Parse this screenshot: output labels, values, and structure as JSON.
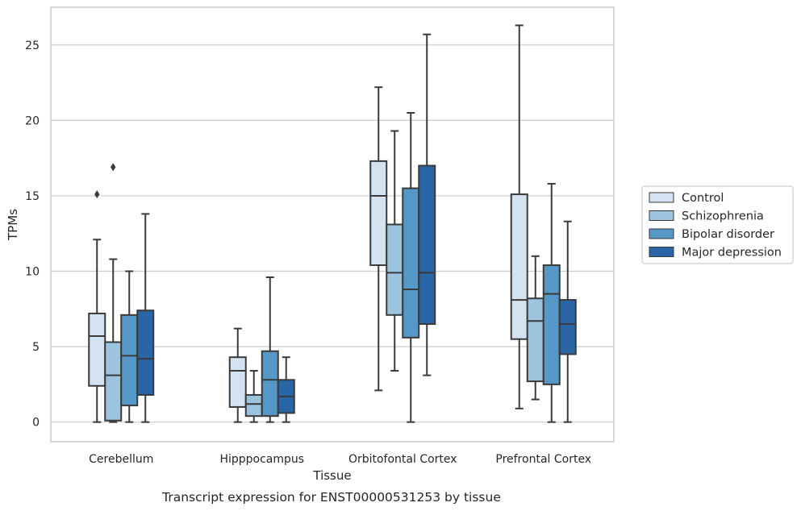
{
  "chart_data": {
    "type": "box",
    "caption": "Transcript expression for ENST00000531253 by tissue",
    "xlabel": "Tissue",
    "ylabel": "TPMs",
    "ylim": [
      -1.3,
      27.5
    ],
    "yticks": [
      0,
      5,
      10,
      15,
      20,
      25
    ],
    "grid": "horizontal",
    "legend_position": "right",
    "categories": [
      "Cerebellum",
      "Hipppocampus",
      "Orbitofontal Cortex",
      "Prefrontal Cortex"
    ],
    "series": [
      {
        "name": "Control",
        "color": "#d3e3f2",
        "boxes": [
          {
            "whisker_low": 0,
            "q1": 2.4,
            "median": 5.7,
            "q3": 7.2,
            "whisker_high": 12.1,
            "outliers": [
              15.1
            ]
          },
          {
            "whisker_low": 0,
            "q1": 1.0,
            "median": 3.4,
            "q3": 4.3,
            "whisker_high": 6.2,
            "outliers": []
          },
          {
            "whisker_low": 2.1,
            "q1": 10.4,
            "median": 15.0,
            "q3": 17.3,
            "whisker_high": 22.2,
            "outliers": []
          },
          {
            "whisker_low": 0.9,
            "q1": 5.5,
            "median": 8.1,
            "q3": 15.1,
            "whisker_high": 26.3,
            "outliers": []
          }
        ]
      },
      {
        "name": "Schizophrenia",
        "color": "#9cc4df",
        "boxes": [
          {
            "whisker_low": 0,
            "q1": 0.1,
            "median": 3.1,
            "q3": 5.3,
            "whisker_high": 10.8,
            "outliers": [
              16.9
            ]
          },
          {
            "whisker_low": 0,
            "q1": 0.4,
            "median": 1.2,
            "q3": 1.8,
            "whisker_high": 3.4,
            "outliers": []
          },
          {
            "whisker_low": 3.4,
            "q1": 7.1,
            "median": 9.9,
            "q3": 13.1,
            "whisker_high": 19.3,
            "outliers": []
          },
          {
            "whisker_low": 1.5,
            "q1": 2.7,
            "median": 6.7,
            "q3": 8.2,
            "whisker_high": 11.0,
            "outliers": []
          }
        ]
      },
      {
        "name": "Bipolar disorder",
        "color": "#5597c6",
        "boxes": [
          {
            "whisker_low": 0,
            "q1": 1.1,
            "median": 4.4,
            "q3": 7.1,
            "whisker_high": 10.0,
            "outliers": []
          },
          {
            "whisker_low": 0,
            "q1": 0.4,
            "median": 2.8,
            "q3": 4.7,
            "whisker_high": 9.6,
            "outliers": []
          },
          {
            "whisker_low": 0,
            "q1": 5.6,
            "median": 8.8,
            "q3": 15.5,
            "whisker_high": 20.5,
            "outliers": []
          },
          {
            "whisker_low": 0,
            "q1": 2.5,
            "median": 8.5,
            "q3": 10.4,
            "whisker_high": 15.8,
            "outliers": []
          }
        ]
      },
      {
        "name": "Major depression",
        "color": "#2866a8",
        "boxes": [
          {
            "whisker_low": 0,
            "q1": 1.8,
            "median": 4.2,
            "q3": 7.4,
            "whisker_high": 13.8,
            "outliers": []
          },
          {
            "whisker_low": 0,
            "q1": 0.6,
            "median": 1.7,
            "q3": 2.8,
            "whisker_high": 4.3,
            "outliers": []
          },
          {
            "whisker_low": 3.1,
            "q1": 6.5,
            "median": 9.9,
            "q3": 17.0,
            "whisker_high": 25.7,
            "outliers": []
          },
          {
            "whisker_low": 0,
            "q1": 4.5,
            "median": 6.5,
            "q3": 8.1,
            "whisker_high": 13.3,
            "outliers": []
          }
        ]
      }
    ],
    "colors": {
      "grid": "#cccccc",
      "frame": "#cccccc",
      "line": "#3a3a3a"
    }
  }
}
